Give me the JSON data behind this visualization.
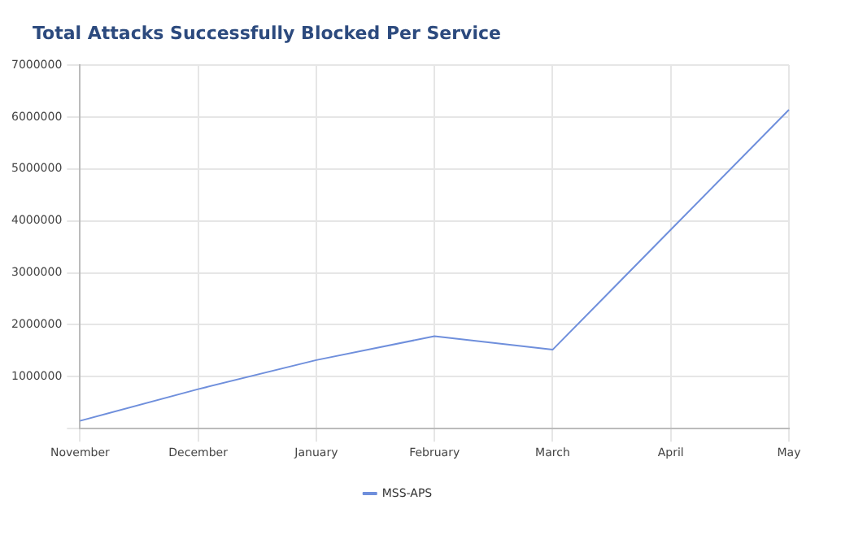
{
  "chart_data": {
    "type": "line",
    "title": "Total Attacks Successfully Blocked Per Service",
    "categories": [
      "November",
      "December",
      "January",
      "February",
      "March",
      "April",
      "May"
    ],
    "series": [
      {
        "name": "MSS-APS",
        "color": "#6f8fdc",
        "values": [
          150000,
          760000,
          1320000,
          1780000,
          1520000,
          3830000,
          6140000
        ]
      }
    ],
    "ylim": [
      0,
      7000000
    ],
    "yticks": [
      {
        "value": 0,
        "label": null
      },
      1000000,
      2000000,
      3000000,
      4000000,
      5000000,
      6000000,
      7000000
    ],
    "grid": true,
    "legend": "bottom",
    "marker": "none",
    "line_style": "solid"
  }
}
